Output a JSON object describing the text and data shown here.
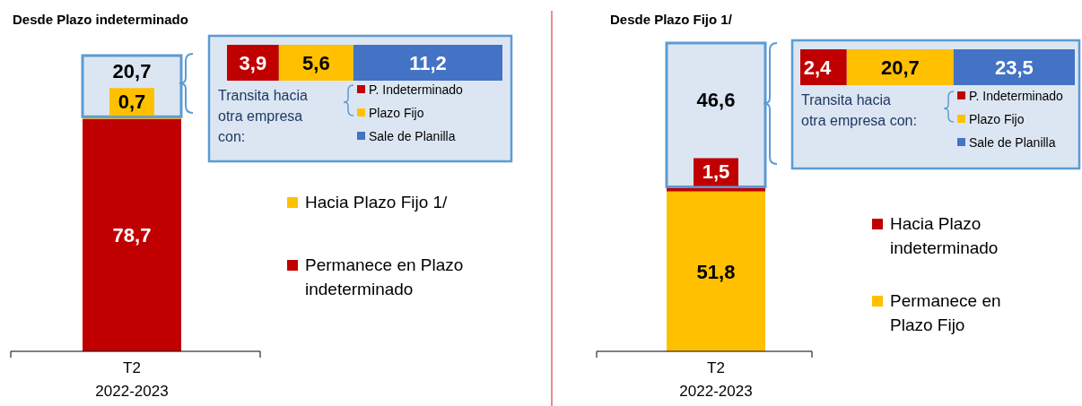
{
  "chart_data": [
    {
      "type": "bar",
      "title": "Desde Plazo indeterminado",
      "stacked": true,
      "categories": [
        "T2\n2022-2023"
      ],
      "legend": "right",
      "series": [
        {
          "name": "Permanece en Plazo indeterminado",
          "color": "#c00000",
          "values": [
            78.7
          ],
          "value_labels": [
            "78,7"
          ]
        },
        {
          "name": "Hacia Plazo Fijo 1/",
          "color": "#ffc000",
          "values": [
            0.7
          ],
          "value_labels": [
            "0,7"
          ]
        },
        {
          "color": "#dce6f2",
          "values": [
            20.7
          ],
          "value_labels": [
            "20,7"
          ]
        }
      ]
    },
    {
      "type": "bar",
      "orientation": "horizontal",
      "stacked": true,
      "categories": [
        null
      ],
      "legend": "bottom",
      "legend_title": "Transita hacia otra empresa con:",
      "series": [
        {
          "name": "P. Indeterminado",
          "color": "#c00000",
          "values": [
            3.9
          ],
          "value_labels": [
            "3,9"
          ]
        },
        {
          "name": "Plazo Fijo",
          "color": "#ffc000",
          "values": [
            5.6
          ],
          "value_labels": [
            "5,6"
          ]
        },
        {
          "name": "Sale de Planilla",
          "color": "#4472c4",
          "values": [
            11.2
          ],
          "value_labels": [
            "11,2"
          ]
        }
      ]
    },
    {
      "type": "bar",
      "title": "Desde Plazo Fijo 1/",
      "stacked": true,
      "categories": [
        "T2\n2022-2023"
      ],
      "legend": "right",
      "series": [
        {
          "name": "Permanece en Plazo Fijo",
          "color": "#ffc000",
          "values": [
            51.8
          ],
          "value_labels": [
            "51,8"
          ]
        },
        {
          "name": "Hacia Plazo indeterminado",
          "color": "#c00000",
          "values": [
            1.5
          ],
          "value_labels": [
            "1,5"
          ]
        },
        {
          "color": "#dce6f2",
          "values": [
            46.6
          ],
          "value_labels": [
            "46,6"
          ]
        }
      ]
    },
    {
      "type": "bar",
      "orientation": "horizontal",
      "stacked": true,
      "categories": [
        null
      ],
      "legend": "bottom",
      "legend_title": "Transita hacia otra empresa con:",
      "series": [
        {
          "name": "P. Indeterminado",
          "color": "#c00000",
          "values": [
            2.4
          ],
          "value_labels": [
            "2,4"
          ]
        },
        {
          "name": "Plazo Fijo",
          "color": "#ffc000",
          "values": [
            20.7
          ],
          "value_labels": [
            "20,7"
          ]
        },
        {
          "name": "Sale de Planilla",
          "color": "#4472c4",
          "values": [
            23.5
          ],
          "value_labels": [
            "23,5"
          ]
        }
      ]
    }
  ]
}
